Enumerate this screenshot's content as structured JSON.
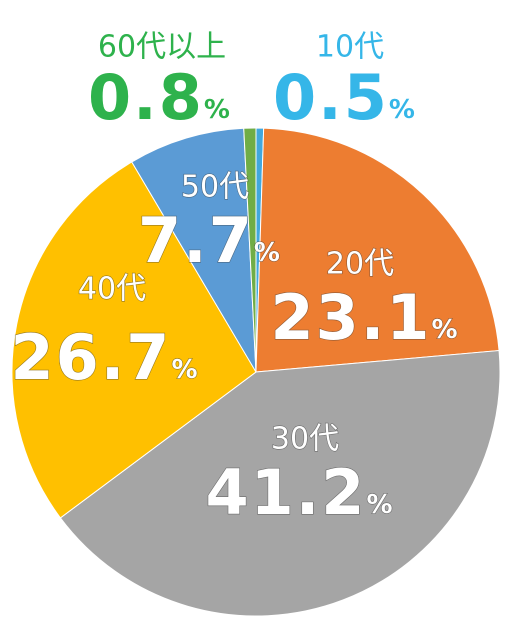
{
  "chart_data": {
    "type": "pie",
    "categories": [
      "10代",
      "20代",
      "30代",
      "40代",
      "50代",
      "60代以上"
    ],
    "values": [
      0.5,
      23.1,
      41.2,
      26.7,
      7.7,
      0.8
    ],
    "value_labels": [
      "0.5%",
      "23.1%",
      "41.2%",
      "26.7%",
      "7.7%",
      "0.8%"
    ],
    "colors": [
      "#41A8DE",
      "#ED7D31",
      "#A5A5A5",
      "#FFC000",
      "#5B9BD5",
      "#70AD47"
    ]
  }
}
